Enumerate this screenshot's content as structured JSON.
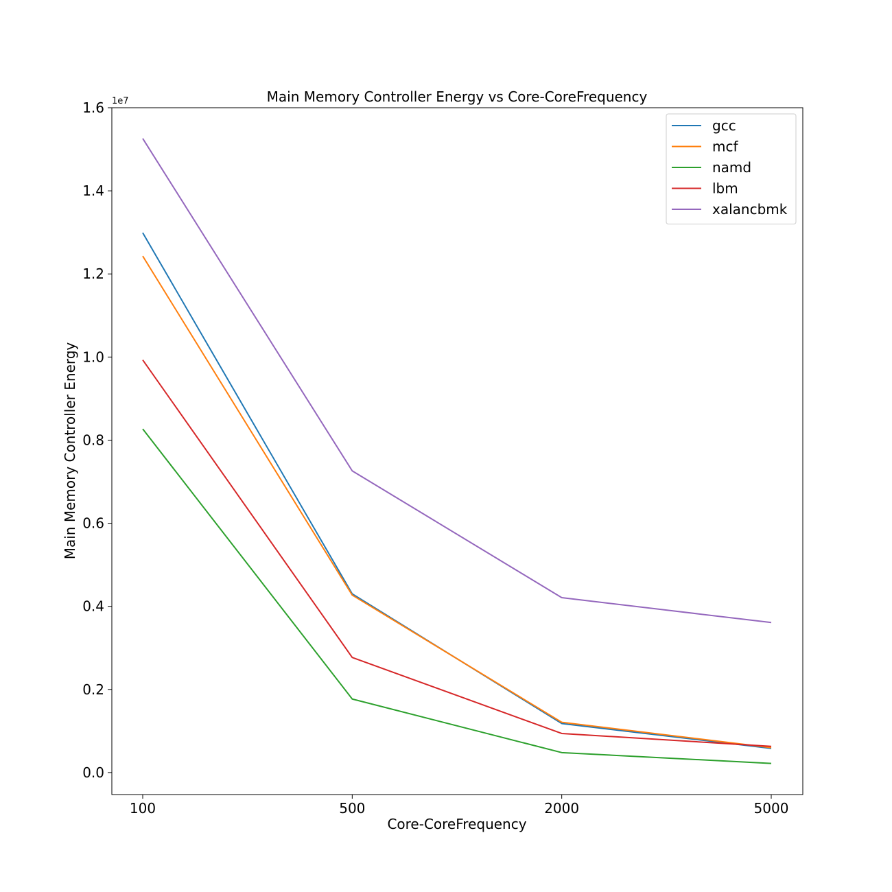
{
  "chart_data": {
    "type": "line",
    "title": "Main Memory Controller Energy vs Core-CoreFrequency",
    "xlabel": "Core-CoreFrequency",
    "ylabel": "Main Memory Controller Energy",
    "y_offset_label": "1e7",
    "categories": [
      "100",
      "500",
      "2000",
      "5000"
    ],
    "yticks": [
      "0.0",
      "0.2",
      "0.4",
      "0.6",
      "0.8",
      "1.0",
      "1.2",
      "1.4",
      "1.6"
    ],
    "ylim": [
      -0.053,
      1.6
    ],
    "legend_position": "top-right",
    "grid": false,
    "series": [
      {
        "name": "gcc",
        "color": "#1f77b4",
        "values": [
          1.299,
          0.43,
          0.118,
          0.058
        ]
      },
      {
        "name": "mcf",
        "color": "#ff7f0e",
        "values": [
          1.243,
          0.427,
          0.121,
          0.06
        ]
      },
      {
        "name": "namd",
        "color": "#2ca02c",
        "values": [
          0.827,
          0.177,
          0.048,
          0.022
        ]
      },
      {
        "name": "lbm",
        "color": "#d62728",
        "values": [
          0.993,
          0.277,
          0.094,
          0.063
        ]
      },
      {
        "name": "xalancbmk",
        "color": "#9467bd",
        "values": [
          1.526,
          0.726,
          0.421,
          0.361
        ]
      }
    ]
  }
}
